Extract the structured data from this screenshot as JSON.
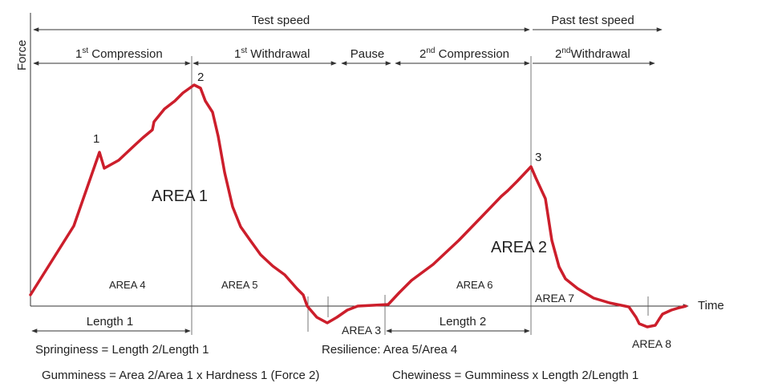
{
  "axes": {
    "y_label": "Force",
    "x_label": "Time"
  },
  "top_arrows": {
    "test_speed": "Test speed",
    "past_test_speed": "Past test speed"
  },
  "phases": {
    "c1_sup": "st",
    "c1_text": " Compression",
    "w1_sup": "st",
    "w1_text": " Withdrawal",
    "pause": "Pause",
    "c2_sup": "nd",
    "c2_text": " Compression",
    "w2_sup": "nd",
    "w2_text": "Withdrawal",
    "num1": "1",
    "num2": "2"
  },
  "points": {
    "p1": "1",
    "p2": "2",
    "p3": "3"
  },
  "areas": {
    "area1": "AREA 1",
    "area2": "AREA 2",
    "area3": "AREA 3",
    "area4": "AREA 4",
    "area5": "AREA 5",
    "area6": "AREA 6",
    "area7": "AREA 7",
    "area8": "AREA 8"
  },
  "lengths": {
    "length1": "Length 1",
    "length2": "Length 2"
  },
  "formulas": {
    "springiness": "Springiness = Length 2/Length 1",
    "resilience": "Resilience: Area 5/Area 4",
    "gumminess": "Gumminess = Area 2/Area 1 x Hardness 1 (Force 2)",
    "chewiness": "Chewiness = Gumminess x Length 2/Length 1"
  },
  "colors": {
    "curve": "#cc1e2b",
    "line": "#333333"
  }
}
